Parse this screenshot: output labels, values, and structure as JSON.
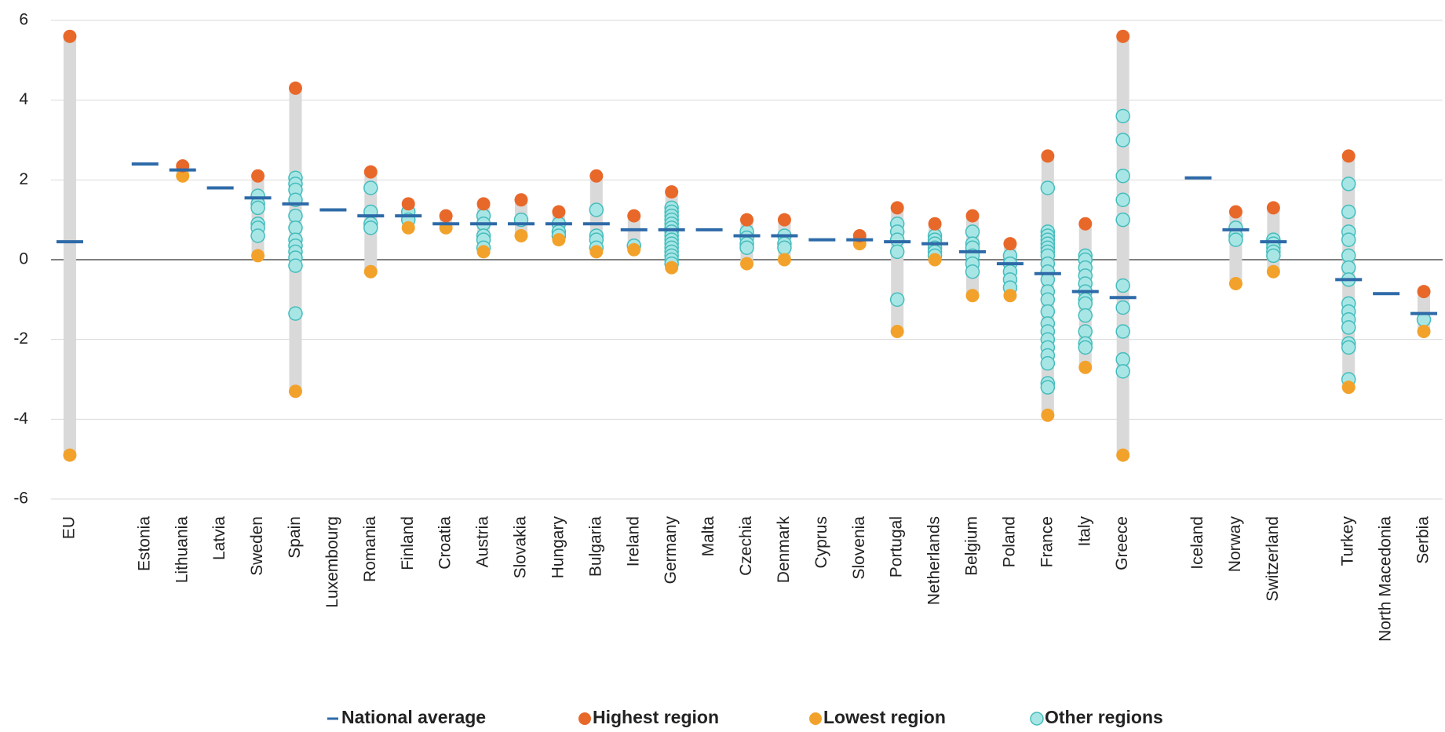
{
  "chart_data": {
    "type": "range-dot",
    "categories": [
      "EU",
      null,
      "Estonia",
      "Lithuania",
      "Latvia",
      "Sweden",
      "Spain",
      "Luxembourg",
      "Romania",
      "Finland",
      "Croatia",
      "Austria",
      "Slovakia",
      "Hungary",
      "Bulgaria",
      "Ireland",
      "Germany",
      "Malta",
      "Czechia",
      "Denmark",
      "Cyprus",
      "Slovenia",
      "Portugal",
      "Netherlands",
      "Belgium",
      "Poland",
      "France",
      "Italy",
      "Greece",
      null,
      "Iceland",
      "Norway",
      "Switzerland",
      null,
      "Turkey",
      "North Macedonia",
      "Serbia"
    ],
    "series": [
      {
        "name": "National average",
        "color": "#2e6aa8",
        "values": [
          0.45,
          null,
          2.4,
          2.25,
          1.8,
          1.55,
          1.4,
          1.25,
          1.1,
          1.1,
          0.9,
          0.9,
          0.9,
          0.9,
          0.9,
          0.75,
          0.75,
          0.75,
          0.6,
          0.6,
          0.5,
          0.5,
          0.45,
          0.4,
          0.2,
          -0.1,
          -0.35,
          -0.8,
          -0.95,
          null,
          2.05,
          0.75,
          0.45,
          null,
          -0.5,
          -0.85,
          -1.35
        ]
      },
      {
        "name": "Highest region",
        "color": "#e8682a",
        "values": [
          5.6,
          null,
          null,
          2.35,
          null,
          2.1,
          4.3,
          null,
          2.2,
          1.4,
          1.1,
          1.4,
          1.5,
          1.2,
          2.1,
          1.1,
          1.7,
          null,
          1.0,
          1.0,
          null,
          0.6,
          1.3,
          0.9,
          1.1,
          0.4,
          2.6,
          0.9,
          5.6,
          null,
          null,
          1.2,
          1.3,
          null,
          2.6,
          null,
          -0.8
        ]
      },
      {
        "name": "Lowest region",
        "color": "#f2a22b",
        "values": [
          -4.9,
          null,
          null,
          2.1,
          null,
          0.1,
          -3.3,
          null,
          -0.3,
          0.8,
          0.8,
          0.2,
          0.6,
          0.5,
          0.2,
          0.25,
          -0.2,
          null,
          -0.1,
          0.0,
          null,
          0.4,
          -1.8,
          0.0,
          -0.9,
          -0.9,
          -3.9,
          -2.7,
          -4.9,
          null,
          null,
          -0.6,
          -0.3,
          null,
          -3.2,
          null,
          -1.8
        ]
      },
      {
        "name": "Other regions",
        "color": "#a8e6e6",
        "stroke": "#45bcbc",
        "values": [
          [],
          null,
          [],
          [],
          [],
          [
            1.6,
            1.4,
            1.3,
            0.9,
            0.8,
            0.6
          ],
          [
            2.05,
            1.9,
            1.75,
            1.5,
            1.1,
            0.8,
            0.5,
            0.35,
            0.2,
            0.05,
            -0.15,
            -1.35
          ],
          [],
          [
            1.8,
            1.2,
            0.9,
            0.8
          ],
          [
            1.2,
            1.0
          ],
          [],
          [
            1.1,
            0.9,
            0.6,
            0.5,
            0.3
          ],
          [
            1.0
          ],
          [
            0.9,
            0.7,
            0.6
          ],
          [
            1.25,
            0.6,
            0.5,
            0.3
          ],
          [
            0.35
          ],
          [
            1.3,
            1.2,
            1.1,
            1.0,
            0.9,
            0.8,
            0.7,
            0.6,
            0.5,
            0.4,
            0.3,
            0.2,
            0.1,
            0.0,
            -0.1
          ],
          [],
          [
            0.7,
            0.55,
            0.4,
            0.3
          ],
          [
            0.6,
            0.4,
            0.3
          ],
          [],
          [],
          [
            0.9,
            0.7,
            0.5,
            0.2,
            -1.0
          ],
          [
            0.6,
            0.5,
            0.4,
            0.3,
            0.2,
            0.1
          ],
          [
            0.7,
            0.4,
            0.3,
            0.1,
            -0.1,
            -0.3
          ],
          [
            0.1,
            -0.1,
            -0.3,
            -0.5,
            -0.7
          ],
          [
            1.8,
            0.7,
            0.6,
            0.5,
            0.4,
            0.3,
            0.2,
            0.1,
            -0.1,
            -0.3,
            -0.5,
            -0.8,
            -1.0,
            -1.3,
            -1.6,
            -1.8,
            -2.0,
            -2.2,
            -2.4,
            -2.6,
            -3.1,
            -3.2
          ],
          [
            0.1,
            0.0,
            -0.2,
            -0.4,
            -0.6,
            -0.8,
            -1.0,
            -1.1,
            -1.4,
            -1.8,
            -2.1,
            -2.2
          ],
          [
            3.6,
            3.0,
            2.1,
            1.5,
            1.0,
            -0.65,
            -1.2,
            -1.8,
            -2.5,
            -2.8
          ],
          null,
          [],
          [
            0.8,
            0.6,
            0.5
          ],
          [
            0.5,
            0.4,
            0.3,
            0.2,
            0.1
          ],
          null,
          [
            1.9,
            1.2,
            0.7,
            0.5,
            0.1,
            -0.2,
            -0.5,
            -1.1,
            -1.3,
            -1.5,
            -1.7,
            -2.1,
            -2.2,
            -3.0
          ],
          [],
          [
            -1.5
          ]
        ]
      }
    ],
    "range_color": "#d9d9d9",
    "ylim": [
      -6,
      6
    ],
    "yticks": [
      -6,
      -4,
      -2,
      0,
      2,
      4,
      6
    ],
    "grid": true
  }
}
